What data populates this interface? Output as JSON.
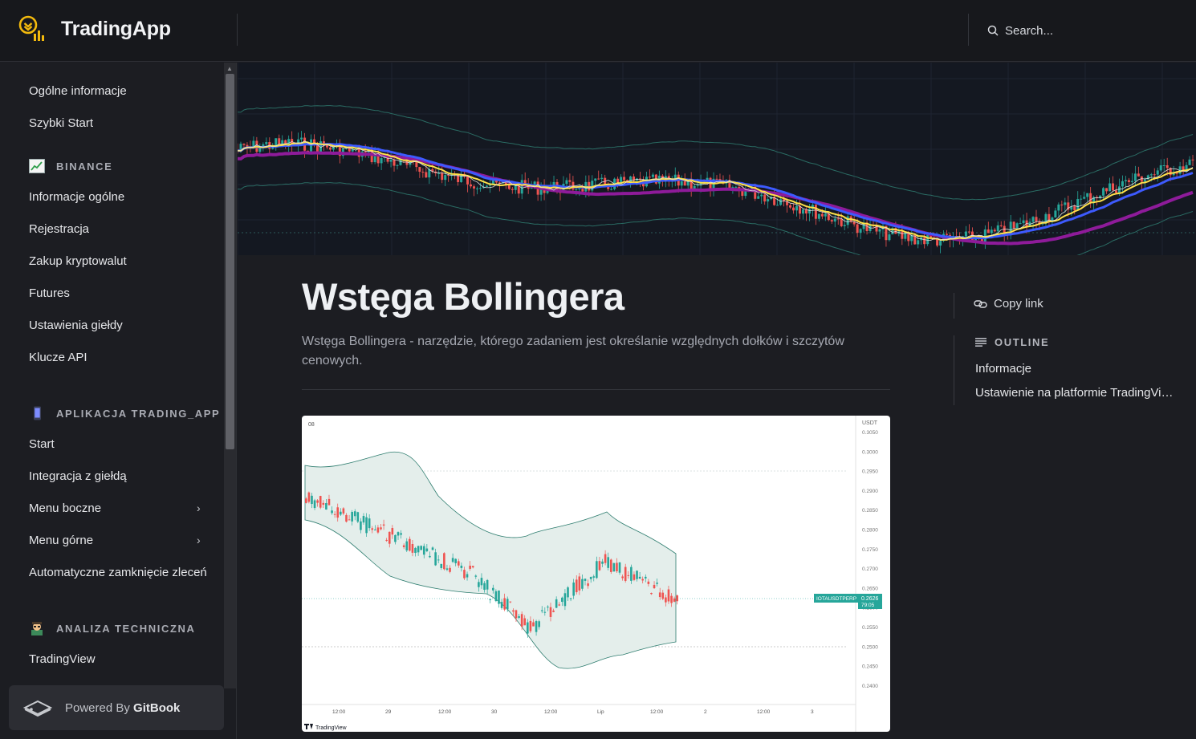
{
  "header": {
    "brand": "TradingApp",
    "search_placeholder": "Search..."
  },
  "sidebar": {
    "top_items": [
      "Ogólne informacje",
      "Szybki Start"
    ],
    "groups": [
      {
        "title": "BINANCE",
        "icon": "chart-increasing-icon",
        "items": [
          "Informacje ogólne",
          "Rejestracja",
          "Zakup kryptowalut",
          "Futures",
          "Ustawienia giełdy",
          "Klucze API"
        ]
      },
      {
        "title": "APLIKACJA TRADING_APP",
        "icon": "mobile-phone-icon",
        "items": [
          "Start",
          "Integracja z giełdą",
          "Menu boczne",
          "Menu górne",
          "Automatyczne zamknięcie zleceń"
        ]
      },
      {
        "title": "ANALIZA TECHNICZNA",
        "icon": "scientist-icon",
        "items": [
          "TradingView"
        ]
      }
    ],
    "powered_prefix": "Powered By ",
    "powered_brand": "GitBook"
  },
  "main": {
    "title": "Wstęga Bollingera",
    "subtitle": "Wstęga Bollingera - narzędzie, którego zadaniem jest określanie względnych dołków i szczytów cenowych."
  },
  "figure": {
    "corner_label": "08",
    "price_unit": "USDT",
    "price_ticks": [
      "0.3050",
      "0.3000",
      "0.2950",
      "0.2900",
      "0.2850",
      "0.2800",
      "0.2750",
      "0.2700",
      "0.2650",
      "0.2600",
      "0.2550",
      "0.2500",
      "0.2450",
      "0.2400"
    ],
    "time_ticks": [
      "12:00",
      "29",
      "12:00",
      "30",
      "12:00",
      "Lip",
      "12:00",
      "2",
      "12:00",
      "3"
    ],
    "symbol_label": "IOTAUSDTPERP",
    "last_price": "0.2626",
    "countdown": "79:05",
    "watermark": "TradingView",
    "colors": {
      "up": "#26a69a",
      "down": "#ef5350",
      "band_fill": "#e4eeeb"
    }
  },
  "toc": {
    "copy_link": "Copy link",
    "outline_title": "OUTLINE",
    "items": [
      "Informacje",
      "Ustawienie na platformie TradingView"
    ]
  }
}
